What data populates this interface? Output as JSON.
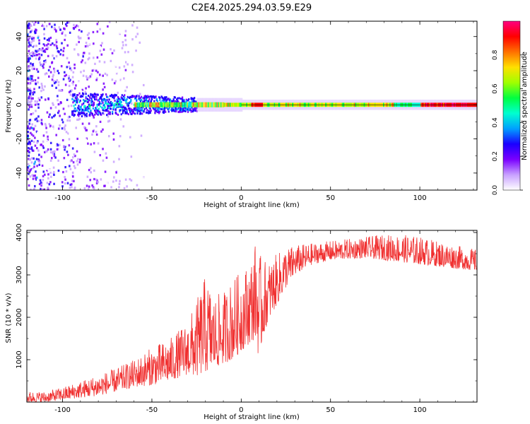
{
  "title": "C2E4.2025.294.03.59.E29",
  "chart_data": [
    {
      "type": "heatmap",
      "name": "spectrogram",
      "xlabel": "Height of straight line (km)",
      "ylabel": "Frequency (Hz)",
      "xlim": [
        -120,
        132
      ],
      "ylim": [
        -50,
        49
      ],
      "xticks": [
        -100,
        -50,
        0,
        50,
        100
      ],
      "yticks": [
        -40,
        -20,
        0,
        20,
        40
      ],
      "colorbar": {
        "label": "Normalized spectral amplitude",
        "range": [
          0.0,
          1.0
        ],
        "ticks": [
          "0.0",
          "0.2",
          "0.4",
          "0.6",
          "0.8"
        ],
        "tick_values": [
          0.0,
          0.2,
          0.4,
          0.6,
          0.8
        ],
        "colors": [
          "#ffffff",
          "#c8a0ff",
          "#7a00ff",
          "#1a00ff",
          "#00a0ff",
          "#00ffd0",
          "#00ff40",
          "#a0ff00",
          "#ffe000",
          "#ff7000",
          "#ff0000",
          "#ff0080"
        ]
      },
      "description_points": {
        "band_center_hz": 0,
        "noise_region_km": [
          -120,
          -60
        ],
        "wide_band_region_km": [
          -95,
          -25
        ],
        "narrow_line_start_km": -10,
        "line_end_km": 132
      }
    },
    {
      "type": "line",
      "name": "snr",
      "xlabel": "Height of straight line (km)",
      "ylabel": "SNR (10 * v/v)",
      "xlim": [
        -120,
        132
      ],
      "ylim": [
        0,
        4050
      ],
      "xticks": [
        -100,
        -50,
        0,
        50,
        100
      ],
      "yticks": [
        1000,
        2000,
        3000,
        4000
      ],
      "color": "#f03030",
      "series": [
        {
          "name": "SNR",
          "x": [
            -120,
            -110,
            -100,
            -90,
            -80,
            -70,
            -60,
            -50,
            -40,
            -30,
            -25,
            -20,
            -15,
            -10,
            -5,
            0,
            5,
            8,
            10,
            12,
            15,
            20,
            25,
            30,
            40,
            50,
            60,
            70,
            80,
            90,
            100,
            110,
            120,
            132
          ],
          "low": [
            0,
            0,
            50,
            100,
            150,
            250,
            350,
            400,
            500,
            650,
            600,
            700,
            800,
            900,
            1000,
            1200,
            1400,
            1500,
            1000,
            1500,
            1900,
            2300,
            2700,
            3000,
            3250,
            3350,
            3380,
            3400,
            3350,
            3300,
            3250,
            3200,
            3150,
            3100
          ],
          "high": [
            250,
            250,
            350,
            500,
            650,
            800,
            1000,
            1300,
            1500,
            1900,
            2400,
            3000,
            2500,
            2600,
            2900,
            3100,
            3300,
            3800,
            3500,
            3400,
            3300,
            3500,
            3650,
            3700,
            3750,
            3800,
            3850,
            3900,
            3950,
            3950,
            3900,
            3800,
            3700,
            3600
          ]
        }
      ]
    }
  ]
}
